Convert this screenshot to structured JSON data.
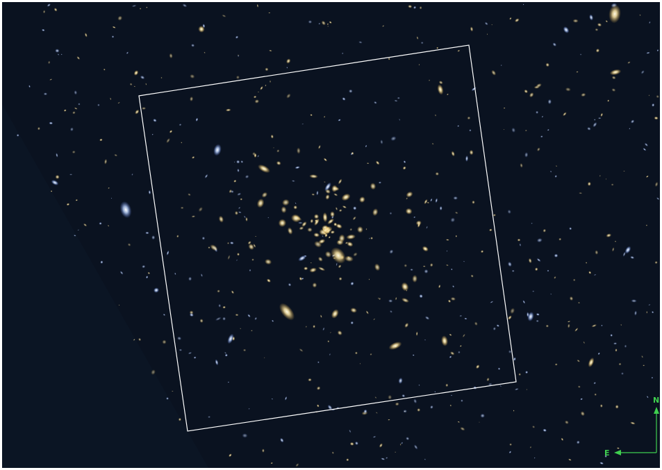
{
  "image": {
    "subject": "galaxy-cluster-deep-field",
    "colors": {
      "sky": "#0a1220",
      "outside": "#0b1524",
      "border": "#ffffff",
      "box": "#ffffff",
      "compass": "#3fcf4f",
      "star_warm": "#ffe9a8",
      "star_cool": "#bcd4ff"
    }
  },
  "compass": {
    "north_label": "N",
    "east_label": "E"
  }
}
